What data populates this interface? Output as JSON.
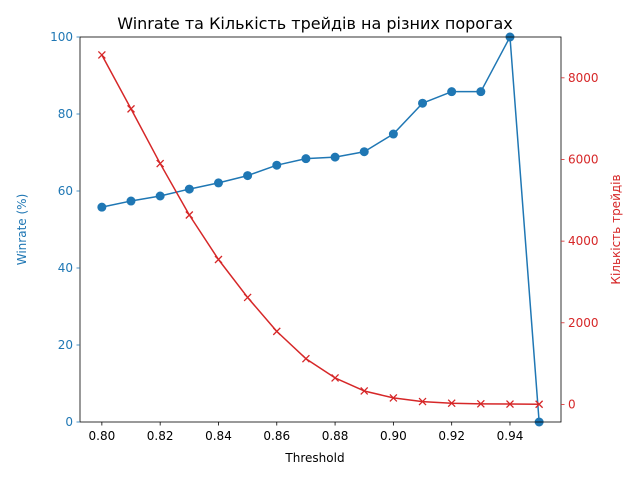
{
  "chart_data": {
    "type": "line",
    "title": "Winrate та Кількість трейдів на різних порогах",
    "xlabel": "Threshold",
    "ylabel_left": "Winrate (%)",
    "ylabel_right": "Кількість трейдів",
    "x": [
      0.8,
      0.81,
      0.82,
      0.83,
      0.84,
      0.85,
      0.86,
      0.87,
      0.88,
      0.89,
      0.9,
      0.91,
      0.92,
      0.93,
      0.94,
      0.95
    ],
    "x_ticks": [
      "0.80",
      "0.82",
      "0.84",
      "0.86",
      "0.88",
      "0.90",
      "0.92",
      "0.94"
    ],
    "y_left_ticks": [
      "0",
      "20",
      "40",
      "60",
      "80",
      "100"
    ],
    "y_right_ticks": [
      "0",
      "2000",
      "4000",
      "6000",
      "8000"
    ],
    "xlim": [
      0.7925,
      0.9575
    ],
    "ylim_left": [
      0,
      100
    ],
    "ylim_right": [
      -430,
      9000
    ],
    "grid": false,
    "series": [
      {
        "axis": "left",
        "marker": "circle",
        "color": "#1f77b4",
        "values": [
          55.8,
          57.4,
          58.7,
          60.5,
          62.1,
          64.0,
          66.7,
          68.4,
          68.8,
          70.2,
          74.8,
          82.8,
          85.8,
          85.8,
          100.0,
          0.0
        ]
      },
      {
        "axis": "right",
        "marker": "x",
        "color": "#d62728",
        "values": [
          8560,
          7240,
          5900,
          4640,
          3550,
          2620,
          1790,
          1120,
          650,
          330,
          160,
          70,
          30,
          15,
          10,
          5
        ]
      }
    ]
  }
}
